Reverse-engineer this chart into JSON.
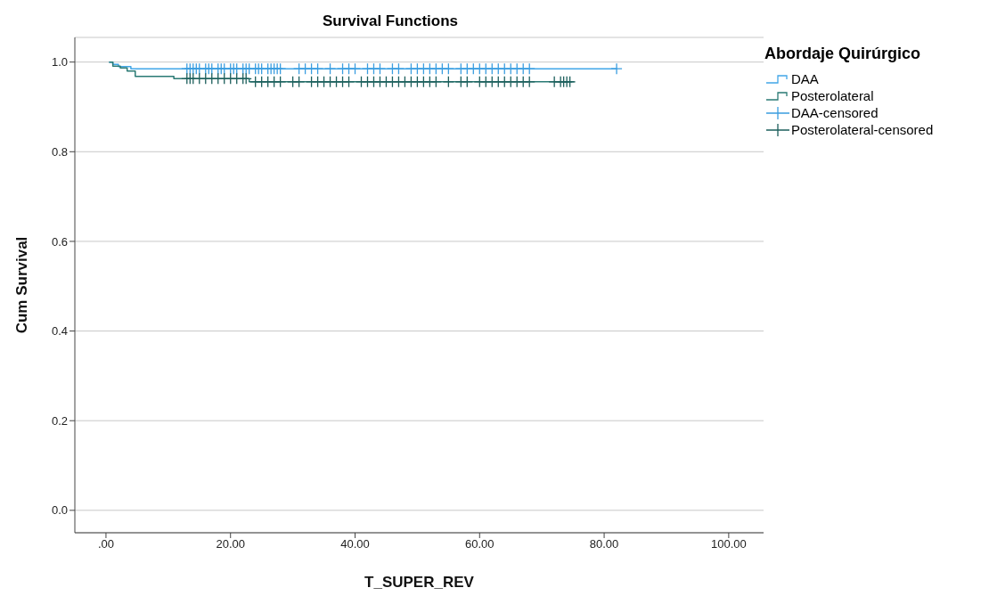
{
  "chart_data": {
    "type": "step",
    "title": "Survival Functions",
    "xlabel": "T_SUPER_REV",
    "ylabel": "Cum Survival",
    "legend_title": "Abordaje Quirúrgico",
    "legend": "top right",
    "grid": "y",
    "xlim": [
      -5,
      105.6
    ],
    "ylim": [
      -0.05,
      1.055
    ],
    "xticks": [
      {
        "value": 0,
        "label": ".00"
      },
      {
        "value": 20,
        "label": "20.00"
      },
      {
        "value": 40,
        "label": "40.00"
      },
      {
        "value": 60,
        "label": "60.00"
      },
      {
        "value": 80,
        "label": "80.00"
      },
      {
        "value": 100,
        "label": "100.00"
      }
    ],
    "yticks": [
      {
        "value": 0,
        "label": "0.0"
      },
      {
        "value": 0.2,
        "label": "0.2"
      },
      {
        "value": 0.4,
        "label": "0.4"
      },
      {
        "value": 0.6,
        "label": "0.6"
      },
      {
        "value": 0.8,
        "label": "0.8"
      },
      {
        "value": 1,
        "label": "1.0"
      }
    ],
    "series": [
      {
        "name": "DAA",
        "color": "#41a6e8",
        "x": [
          0.5,
          1.1,
          2.0,
          4.0,
          82
        ],
        "values": [
          1.0,
          0.995,
          0.99,
          0.985,
          0.985
        ]
      },
      {
        "name": "Posterolateral",
        "color": "#2a7a74",
        "x": [
          0.5,
          1.1,
          2.3,
          3.4,
          4.7,
          10.9,
          23.0,
          75.2
        ],
        "values": [
          1.0,
          0.991,
          0.987,
          0.98,
          0.968,
          0.963,
          0.956,
          0.956
        ]
      },
      {
        "name": "DAA-censored",
        "type": "scatter",
        "marker": "cross",
        "color": "#3a9de0",
        "x": [
          13,
          13.5,
          14,
          14.5,
          15,
          16,
          16.5,
          17,
          18,
          18.5,
          19,
          20,
          20.5,
          21,
          22,
          22.5,
          23,
          24,
          24.5,
          25,
          26,
          26.5,
          27,
          27.5,
          28,
          31,
          32,
          33,
          34,
          36,
          38,
          39,
          40,
          42,
          43,
          44,
          46,
          47,
          49,
          50,
          51,
          52,
          53,
          54,
          55,
          57,
          58,
          59,
          60,
          61,
          62,
          63,
          64,
          65,
          66,
          67,
          68,
          82
        ],
        "values": [
          0.985,
          0.985,
          0.985,
          0.985,
          0.985,
          0.985,
          0.985,
          0.985,
          0.985,
          0.985,
          0.985,
          0.985,
          0.985,
          0.985,
          0.985,
          0.985,
          0.985,
          0.985,
          0.985,
          0.985,
          0.985,
          0.985,
          0.985,
          0.985,
          0.985,
          0.985,
          0.985,
          0.985,
          0.985,
          0.985,
          0.985,
          0.985,
          0.985,
          0.985,
          0.985,
          0.985,
          0.985,
          0.985,
          0.985,
          0.985,
          0.985,
          0.985,
          0.985,
          0.985,
          0.985,
          0.985,
          0.985,
          0.985,
          0.985,
          0.985,
          0.985,
          0.985,
          0.985,
          0.985,
          0.985,
          0.985,
          0.985,
          0.985
        ]
      },
      {
        "name": "Posterolateral-censored",
        "type": "scatter",
        "marker": "cross",
        "color": "#1d5f5c",
        "x": [
          13,
          13.5,
          14,
          15,
          16,
          17,
          18,
          19,
          20,
          21,
          22,
          22.5,
          24,
          25,
          26,
          27,
          28,
          30,
          31,
          33,
          34,
          35,
          36,
          37,
          38,
          39,
          41,
          42,
          43,
          44,
          45,
          46,
          47,
          48,
          49,
          50,
          51,
          52,
          53,
          55,
          57,
          58,
          60,
          61,
          62,
          63,
          64,
          65,
          66,
          67,
          68,
          72,
          73,
          73.5,
          74,
          74.5
        ],
        "values": [
          0.963,
          0.963,
          0.963,
          0.963,
          0.963,
          0.963,
          0.963,
          0.963,
          0.963,
          0.963,
          0.963,
          0.963,
          0.956,
          0.956,
          0.956,
          0.956,
          0.956,
          0.956,
          0.956,
          0.956,
          0.956,
          0.956,
          0.956,
          0.956,
          0.956,
          0.956,
          0.956,
          0.956,
          0.956,
          0.956,
          0.956,
          0.956,
          0.956,
          0.956,
          0.956,
          0.956,
          0.956,
          0.956,
          0.956,
          0.956,
          0.956,
          0.956,
          0.956,
          0.956,
          0.956,
          0.956,
          0.956,
          0.956,
          0.956,
          0.956,
          0.956,
          0.956,
          0.956,
          0.956,
          0.956,
          0.956
        ]
      }
    ]
  }
}
